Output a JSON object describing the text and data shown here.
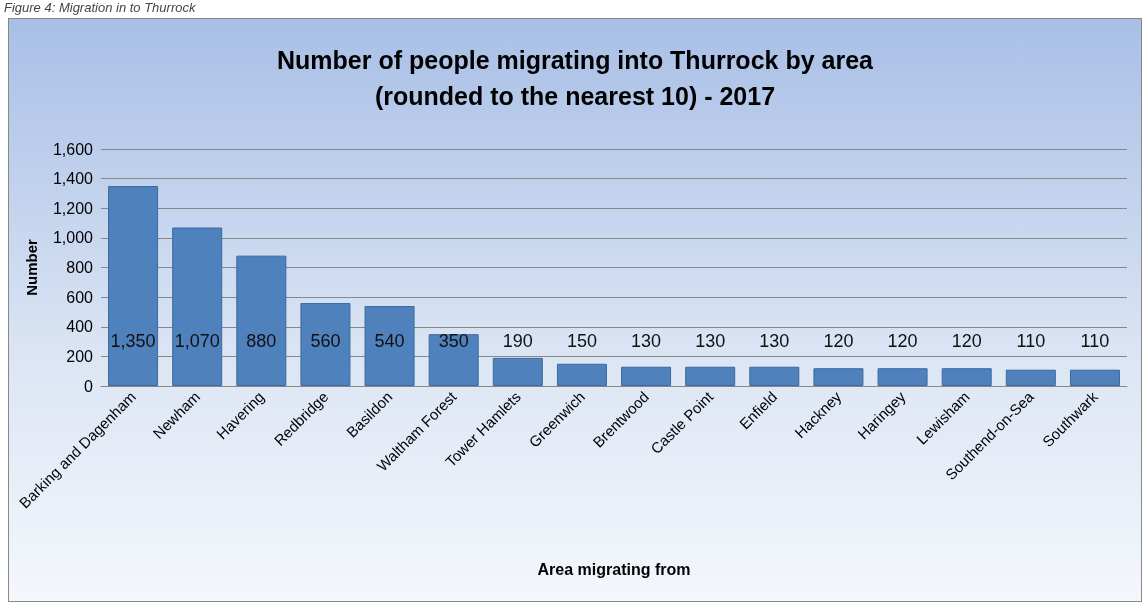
{
  "chart_data": {
    "type": "bar",
    "title": "Number of people migrating into Thurrock by area\n(rounded to the nearest 10) - 2017",
    "xlabel": "Area migrating from",
    "ylabel": "Number",
    "annotations": [
      "Figure 4: Migration in to Thurrock"
    ],
    "categories": [
      "Barking and Dagenham",
      "Newham",
      "Havering",
      "Redbridge",
      "Basildon",
      "Waltham Forest",
      "Tower Hamlets",
      "Greenwich",
      "Brentwood",
      "Castle Point",
      "Enfield",
      "Hackney",
      "Haringey",
      "Lewisham",
      "Southend-on-Sea",
      "Southwark"
    ],
    "values": [
      1350,
      1070,
      880,
      560,
      540,
      350,
      190,
      150,
      130,
      130,
      130,
      120,
      120,
      120,
      110,
      110
    ],
    "value_labels": [
      "1,350",
      "1,070",
      "880",
      "560",
      "540",
      "350",
      "190",
      "150",
      "130",
      "130",
      "130",
      "120",
      "120",
      "120",
      "110",
      "110"
    ],
    "color": "#4f81bd",
    "ylim": [
      0,
      1600
    ],
    "yticks": [
      {
        "value": 0,
        "label": "0"
      },
      {
        "value": 200,
        "label": "200"
      },
      {
        "value": 400,
        "label": "400"
      },
      {
        "value": 600,
        "label": "600"
      },
      {
        "value": 800,
        "label": "800"
      },
      {
        "value": 1000,
        "label": "1,000"
      },
      {
        "value": 1200,
        "label": "1,200"
      },
      {
        "value": 1400,
        "label": "1,400"
      },
      {
        "value": 1600,
        "label": "1,600"
      }
    ],
    "grid": "y"
  }
}
